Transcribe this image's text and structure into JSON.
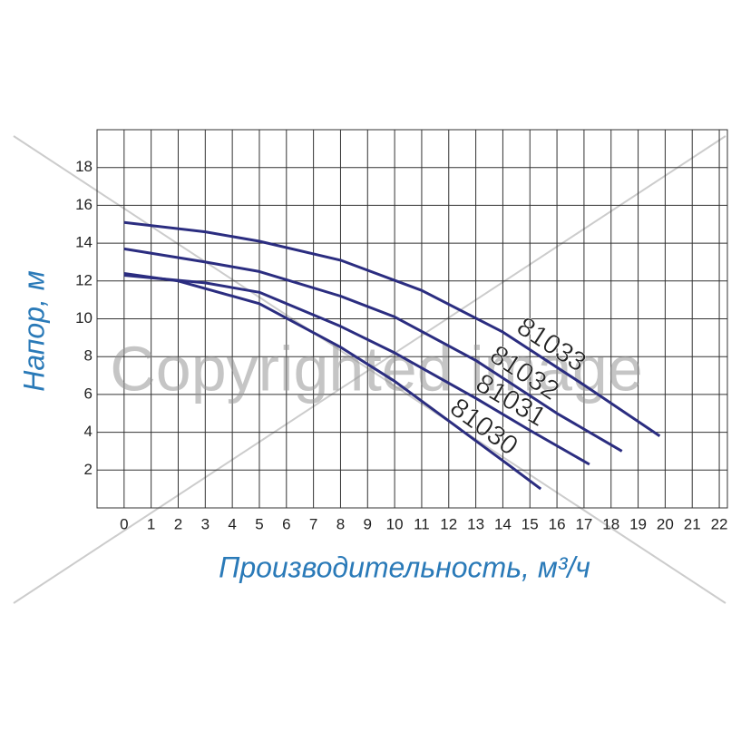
{
  "chart_data": {
    "type": "line",
    "xlabel": "Производительность, м³/ч",
    "ylabel": "Напор, м",
    "watermark": "Copyrighted image",
    "xlim": [
      -1,
      22.3
    ],
    "ylim": [
      0,
      20
    ],
    "xticks": [
      0,
      1,
      2,
      3,
      4,
      5,
      6,
      7,
      8,
      9,
      10,
      11,
      12,
      13,
      14,
      15,
      16,
      17,
      18,
      19,
      20,
      21,
      22
    ],
    "yticks": [
      2,
      4,
      6,
      8,
      10,
      12,
      14,
      16,
      18
    ],
    "grid": true,
    "series": [
      {
        "name": "81033",
        "color": "#2b2d80",
        "x": [
          0,
          3,
          5,
          8,
          11,
          14,
          17,
          19.8
        ],
        "values": [
          15.1,
          14.6,
          14.1,
          13.1,
          11.5,
          9.3,
          6.5,
          3.8
        ]
      },
      {
        "name": "81032",
        "color": "#2b2d80",
        "x": [
          0,
          3,
          5,
          8,
          10,
          13,
          16,
          18.4
        ],
        "values": [
          13.7,
          13.0,
          12.5,
          11.2,
          10.1,
          7.8,
          5.0,
          3.0
        ]
      },
      {
        "name": "81031",
        "color": "#2b2d80",
        "x": [
          0,
          3,
          5,
          8,
          10,
          13,
          15,
          17.2
        ],
        "values": [
          12.3,
          11.9,
          11.4,
          9.6,
          8.2,
          5.8,
          4.1,
          2.3
        ]
      },
      {
        "name": "81030",
        "color": "#2b2d80",
        "x": [
          0,
          2,
          5,
          8,
          10,
          12,
          14,
          15.4
        ],
        "values": [
          12.4,
          12.0,
          10.8,
          8.5,
          6.7,
          4.6,
          2.5,
          1.0
        ]
      }
    ]
  }
}
